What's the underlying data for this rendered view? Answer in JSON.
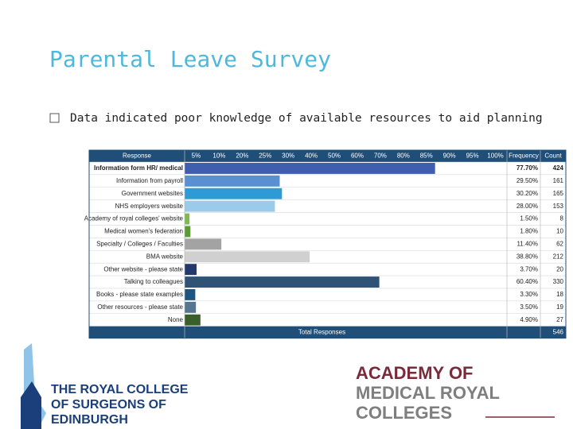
{
  "title": "Parental Leave Survey",
  "bullet": "Data indicated poor knowledge of available resources to aid planning",
  "survey_table": {
    "headers": {
      "response": "Response",
      "frequency": "Frequency",
      "count": "Count"
    },
    "scale_labels": [
      "5%",
      "10%",
      "20%",
      "25%",
      "30%",
      "40%",
      "50%",
      "60%",
      "70%",
      "80%",
      "85%",
      "90%",
      "95%",
      "100%"
    ],
    "scale_range": [
      0,
      100
    ],
    "rows": [
      {
        "response": "Information form HR/ medical",
        "frequency": 77.7,
        "frequency_label": "77.70%",
        "count": 424,
        "color": "#3f5fae"
      },
      {
        "response": "Information from payroll",
        "frequency": 29.5,
        "frequency_label": "29.50%",
        "count": 161,
        "color": "#5a90d2"
      },
      {
        "response": "Government websites",
        "frequency": 30.2,
        "frequency_label": "30.20%",
        "count": 165,
        "color": "#2e9bd6"
      },
      {
        "response": "NHS employers website",
        "frequency": 28.0,
        "frequency_label": "28.00%",
        "count": 153,
        "color": "#9ccbea"
      },
      {
        "response": "Academy of royal colleges' website",
        "frequency": 1.5,
        "frequency_label": "1.50%",
        "count": 8,
        "color": "#7dbb4a"
      },
      {
        "response": "Medical women's federation",
        "frequency": 1.8,
        "frequency_label": "1.80%",
        "count": 10,
        "color": "#5c9a38"
      },
      {
        "response": "Specialty / Colleges / Faculties",
        "frequency": 11.4,
        "frequency_label": "11.40%",
        "count": 62,
        "color": "#a3a3a3"
      },
      {
        "response": "BMA website",
        "frequency": 38.8,
        "frequency_label": "38.80%",
        "count": 212,
        "color": "#d0d0d0"
      },
      {
        "response": "Other website - please state",
        "frequency": 3.7,
        "frequency_label": "3.70%",
        "count": 20,
        "color": "#22396a"
      },
      {
        "response": "Talking to colleagues",
        "frequency": 60.4,
        "frequency_label": "60.40%",
        "count": 330,
        "color": "#2f5277"
      },
      {
        "response": "Books - please state examples",
        "frequency": 3.3,
        "frequency_label": "3.30%",
        "count": 18,
        "color": "#1f5480"
      },
      {
        "response": "Other resources - please state",
        "frequency": 3.5,
        "frequency_label": "3.50%",
        "count": 19,
        "color": "#557590"
      },
      {
        "response": "None",
        "frequency": 4.9,
        "frequency_label": "4.90%",
        "count": 27,
        "color": "#3a5f2a"
      }
    ],
    "total": {
      "label": "Total Responses",
      "count": 546
    }
  },
  "logos": {
    "rcse": [
      "THE ROYAL COLLEGE",
      "OF SURGEONS OF",
      "EDINBURGH"
    ],
    "aomrc": [
      "ACADEMY OF",
      "MEDICAL ROYAL",
      "COLLEGES"
    ]
  }
}
